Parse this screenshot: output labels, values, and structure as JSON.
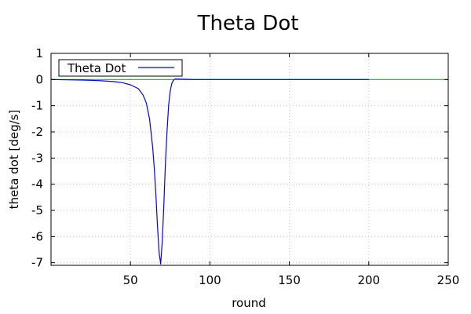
{
  "chart_data": {
    "type": "line",
    "title": "Theta Dot",
    "xlabel": "round",
    "ylabel": "theta dot [deg/s]",
    "xlim": [
      0,
      250
    ],
    "ylim": [
      -7.1,
      1
    ],
    "xticks": [
      50,
      100,
      150,
      200,
      250
    ],
    "yticks": [
      1,
      0,
      -1,
      -2,
      -3,
      -4,
      -5,
      -6,
      -7
    ],
    "grid": true,
    "legend": {
      "placement": "top-left",
      "entries": [
        "Theta Dot"
      ]
    },
    "colors": {
      "series": "#0000ff",
      "reference": "#00cc00",
      "grid": "#c8c8c8"
    },
    "reference_line": {
      "y": 0
    },
    "series": [
      {
        "name": "Theta Dot",
        "x": [
          0,
          10,
          20,
          30,
          40,
          45,
          50,
          55,
          58,
          60,
          62,
          64,
          65,
          66,
          67,
          68,
          69,
          70,
          71,
          72,
          73,
          74,
          75,
          76,
          77,
          78,
          80,
          85,
          90,
          100,
          120,
          150,
          180,
          200
        ],
        "y": [
          0.0,
          -0.01,
          -0.02,
          -0.04,
          -0.08,
          -0.12,
          -0.2,
          -0.35,
          -0.6,
          -0.9,
          -1.5,
          -2.6,
          -3.4,
          -4.4,
          -5.6,
          -6.6,
          -7.05,
          -6.2,
          -4.8,
          -3.2,
          -2.0,
          -1.0,
          -0.45,
          -0.15,
          -0.03,
          0.02,
          0.02,
          0.01,
          0.0,
          0.0,
          0.0,
          0.0,
          0.0,
          0.0
        ]
      }
    ]
  }
}
